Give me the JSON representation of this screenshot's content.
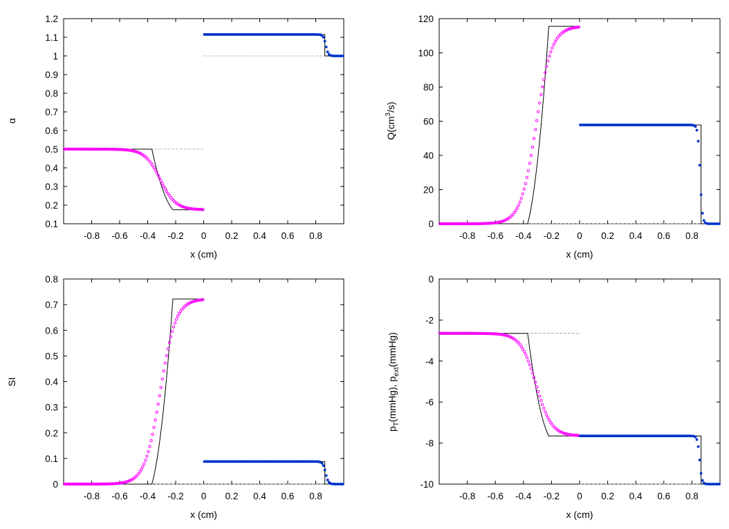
{
  "chart_data": [
    {
      "id": "alpha",
      "type": "line",
      "ylabel": "α",
      "xlabel": "x (cm)",
      "xlim": [
        -1,
        1
      ],
      "ylim": [
        0.1,
        1.2
      ],
      "xticks": [
        -0.8,
        -0.6,
        -0.4,
        -0.2,
        0,
        0.2,
        0.4,
        0.6,
        0.8
      ],
      "xtick_labels": [
        "-0.8",
        "-0.6",
        "-0.4",
        "-0.2",
        "0",
        "0.2",
        "0.4",
        "0.6",
        "0.8"
      ],
      "yticks": [
        0.1,
        0.2,
        0.3,
        0.4,
        0.5,
        0.6,
        0.7,
        0.8,
        0.9,
        1,
        1.1,
        1.2
      ],
      "ytick_labels": [
        "0.1",
        "0.2",
        "0.3",
        "0.4",
        "0.5",
        "0.6",
        "0.7",
        "0.8",
        "0.9",
        "1",
        "1.1",
        "1.2"
      ],
      "left_domain": {
        "x": [
          -1,
          0
        ],
        "initial": 0.5,
        "left_state": 0.5,
        "right_state": 0.175,
        "wave": [
          -0.37,
          -0.22
        ],
        "wave_curve": 0.6,
        "num_center": -0.31,
        "num_width": 0.055,
        "num_points": 100
      },
      "right_domain": {
        "x": [
          0,
          1
        ],
        "initial": 1.0,
        "left_state": 1.115,
        "right_state": 1.0,
        "jump": 0.865,
        "num_center": 0.872,
        "num_width": 0.009,
        "num_points": 100
      }
    },
    {
      "id": "flow",
      "type": "line",
      "ylabel": "Q(cm",
      "ylabel_sup": "3",
      "ylabel_tail": "/s)",
      "xlabel": "x (cm)",
      "xlim": [
        -1,
        1
      ],
      "ylim": [
        0,
        120
      ],
      "xticks": [
        -0.8,
        -0.6,
        -0.4,
        -0.2,
        0,
        0.2,
        0.4,
        0.6,
        0.8
      ],
      "xtick_labels": [
        "-0.8",
        "-0.6",
        "-0.4",
        "-0.2",
        "0",
        "0.2",
        "0.4",
        "0.6",
        "0.8"
      ],
      "yticks": [
        0,
        20,
        40,
        60,
        80,
        100,
        120
      ],
      "ytick_labels": [
        "0",
        "20",
        "40",
        "60",
        "80",
        "100",
        "120"
      ],
      "left_domain": {
        "x": [
          -1,
          0
        ],
        "initial": 0,
        "left_state": 0,
        "right_state": 115.5,
        "wave": [
          -0.37,
          -0.22
        ],
        "wave_curve": -0.6,
        "num_center": -0.31,
        "num_width": 0.055,
        "num_points": 100
      },
      "right_domain": {
        "x": [
          0,
          1
        ],
        "initial": 0,
        "left_state": 57.8,
        "right_state": 0,
        "jump": 0.865,
        "num_center": 0.858,
        "num_width": 0.008,
        "num_points": 100
      }
    },
    {
      "id": "si",
      "type": "line",
      "ylabel": "SI",
      "xlabel": "x (cm)",
      "xlim": [
        -1,
        1
      ],
      "ylim": [
        0,
        0.8
      ],
      "xticks": [
        -0.8,
        -0.6,
        -0.4,
        -0.2,
        0,
        0.2,
        0.4,
        0.6,
        0.8
      ],
      "xtick_labels": [
        "-0.8",
        "-0.6",
        "-0.4",
        "-0.2",
        "0",
        "0.2",
        "0.4",
        "0.6",
        "0.8"
      ],
      "yticks": [
        0,
        0.1,
        0.2,
        0.3,
        0.4,
        0.5,
        0.6,
        0.7,
        0.8
      ],
      "ytick_labels": [
        "0",
        "0.1",
        "0.2",
        "0.3",
        "0.4",
        "0.5",
        "0.6",
        "0.7",
        "0.8"
      ],
      "left_domain": {
        "x": [
          -1,
          0
        ],
        "initial": 0,
        "left_state": 0,
        "right_state": 0.722,
        "wave": [
          -0.37,
          -0.22
        ],
        "wave_curve": -0.6,
        "num_center": -0.31,
        "num_width": 0.055,
        "num_points": 100
      },
      "right_domain": {
        "x": [
          0,
          1
        ],
        "initial": 0,
        "left_state": 0.088,
        "right_state": 0,
        "jump": 0.865,
        "num_center": 0.87,
        "num_width": 0.01,
        "num_points": 100
      }
    },
    {
      "id": "pressure",
      "type": "line",
      "ylabel_parts": [
        {
          "text": "p",
          "baseline": "normal"
        },
        {
          "text": "T",
          "baseline": "sub"
        },
        {
          "text": "(mmHg), p",
          "baseline": "normal"
        },
        {
          "text": "ext",
          "baseline": "sub"
        },
        {
          "text": "(mmHg)",
          "baseline": "normal"
        }
      ],
      "xlabel": "x (cm)",
      "xlim": [
        -1,
        1
      ],
      "ylim": [
        -10,
        0
      ],
      "xticks": [
        -0.8,
        -0.6,
        -0.4,
        -0.2,
        0,
        0.2,
        0.4,
        0.6,
        0.8
      ],
      "xtick_labels": [
        "-0.8",
        "-0.6",
        "-0.4",
        "-0.2",
        "0",
        "0.2",
        "0.4",
        "0.6",
        "0.8"
      ],
      "yticks": [
        -10,
        -8,
        -6,
        -4,
        -2,
        0
      ],
      "ytick_labels": [
        "-10",
        "-8",
        "-6",
        "-4",
        "-2",
        "0"
      ],
      "left_domain": {
        "x": [
          -1,
          0
        ],
        "initial": -2.65,
        "left_state": -2.65,
        "right_state": -7.65,
        "wave": [
          -0.37,
          -0.22
        ],
        "wave_curve": 0.6,
        "num_center": -0.31,
        "num_width": 0.055,
        "num_points": 100
      },
      "right_domain": {
        "x": [
          0,
          1
        ],
        "initial": -10,
        "left_state": -7.65,
        "right_state": -10,
        "jump": 0.865,
        "num_center": 0.855,
        "num_width": 0.008,
        "num_points": 100
      }
    }
  ],
  "colors": {
    "left_numeric": "#ff00ff",
    "right_numeric": "#0033cc",
    "right_numeric_alt": "#009966",
    "exact": "#000000",
    "initial": "#a0a0a0"
  }
}
